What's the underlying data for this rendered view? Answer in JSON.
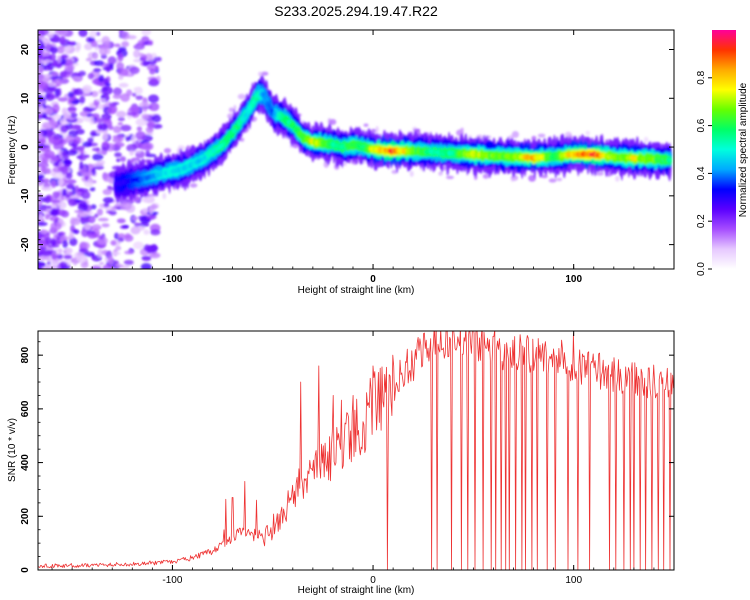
{
  "chart_data": [
    {
      "type": "heatmap",
      "title": "S233.2025.294.19.47.R22",
      "xlabel": "Height of straight line (km)",
      "ylabel": "Frequency (Hz)",
      "xlim": [
        -167,
        150
      ],
      "ylim": [
        -25,
        24
      ],
      "xticks": [
        "-100",
        "0",
        "100"
      ],
      "yticks": [
        "20",
        "10",
        "0",
        "-10",
        "-20"
      ],
      "colorbar": {
        "label": "Normalized spectral amplitude",
        "range": [
          0,
          1
        ],
        "ticks": [
          "0.0",
          "0.2",
          "0.4",
          "0.6",
          "0.8"
        ],
        "colors": [
          "#ffffff",
          "#e6c8ff",
          "#a64dff",
          "#5a00ff",
          "#0000ff",
          "#00aaff",
          "#00ffdd",
          "#00ff66",
          "#66ff00",
          "#ffff00",
          "#ffaa00",
          "#ff3300",
          "#ff0099"
        ]
      },
      "ridge": {
        "x": [
          -128,
          -115,
          -105,
          -95,
          -85,
          -75,
          -68,
          -62,
          -58,
          -55,
          -50,
          -45,
          -40,
          -35,
          -30,
          -25,
          -20,
          -15,
          -10,
          -5,
          0,
          10,
          20,
          30,
          40,
          50,
          60,
          70,
          80,
          90,
          100,
          110,
          120,
          130,
          140,
          148
        ],
        "y": [
          -7.5,
          -6.5,
          -5.5,
          -4.5,
          -2.5,
          0.5,
          4.0,
          7.5,
          10.5,
          11.0,
          7.0,
          6.0,
          4.5,
          2.0,
          1.0,
          0.8,
          0.5,
          0.0,
          0.5,
          0.0,
          -0.5,
          -0.8,
          -0.8,
          -1.0,
          -1.3,
          -1.5,
          -1.8,
          -2.0,
          -2.2,
          -2.0,
          -1.5,
          -1.5,
          -2.0,
          -2.3,
          -2.5,
          -2.6
        ],
        "amp": [
          0.3,
          0.4,
          0.5,
          0.5,
          0.5,
          0.6,
          0.6,
          0.5,
          0.6,
          0.45,
          0.4,
          0.6,
          0.6,
          0.7,
          0.8,
          0.7,
          0.6,
          0.6,
          0.7,
          0.6,
          0.8,
          0.97,
          0.7,
          0.6,
          0.6,
          0.8,
          0.7,
          0.7,
          0.9,
          0.6,
          0.9,
          0.97,
          0.7,
          0.8,
          0.7,
          0.6
        ]
      }
    },
    {
      "type": "line",
      "xlabel": "Height of straight line (km)",
      "ylabel": "SNR (10 * v/v)",
      "xlim": [
        -167,
        150
      ],
      "ylim": [
        0,
        890
      ],
      "xticks": [
        "-100",
        "0",
        "100"
      ],
      "yticks": [
        "0",
        "200",
        "400",
        "600",
        "800"
      ],
      "series": [
        {
          "name": "SNR",
          "color": "#ee3333",
          "x": [
            -167,
            -140,
            -120,
            -100,
            -90,
            -80,
            -70,
            -65,
            -60,
            -55,
            -50,
            -45,
            -40,
            -35,
            -30,
            -25,
            -20,
            -15,
            -10,
            -5,
            0,
            5,
            10,
            15,
            20,
            25,
            30,
            35,
            40,
            45,
            50,
            55,
            60,
            70,
            80,
            90,
            100,
            110,
            120,
            130,
            140,
            150
          ],
          "y": [
            15,
            18,
            22,
            30,
            45,
            70,
            120,
            150,
            130,
            110,
            160,
            200,
            270,
            330,
            360,
            390,
            430,
            470,
            520,
            550,
            600,
            640,
            690,
            740,
            780,
            810,
            840,
            855,
            860,
            860,
            855,
            840,
            830,
            815,
            800,
            790,
            770,
            750,
            730,
            710,
            700,
            695
          ],
          "spikes": [
            {
              "x": -70,
              "y": 270
            },
            {
              "x": -64,
              "y": 330
            },
            {
              "x": -58,
              "y": 260
            },
            {
              "x": -36,
              "y": 700
            },
            {
              "x": -27,
              "y": 760
            },
            {
              "x": -20,
              "y": 650
            },
            {
              "x": -10,
              "y": 650
            },
            {
              "x": 0,
              "y": 760
            },
            {
              "x": 10,
              "y": 800
            },
            {
              "x": 25,
              "y": 880
            },
            {
              "x": 60,
              "y": 870
            },
            {
              "x": 100,
              "y": 880
            }
          ],
          "dropouts": [
            7,
            29,
            32,
            39,
            44,
            47,
            51,
            55,
            59,
            61,
            64,
            66,
            68,
            71,
            74,
            76,
            79,
            82,
            87,
            91,
            97,
            102,
            108,
            118,
            121,
            125,
            128,
            130,
            133,
            136,
            139,
            142,
            145,
            148
          ]
        }
      ]
    }
  ]
}
